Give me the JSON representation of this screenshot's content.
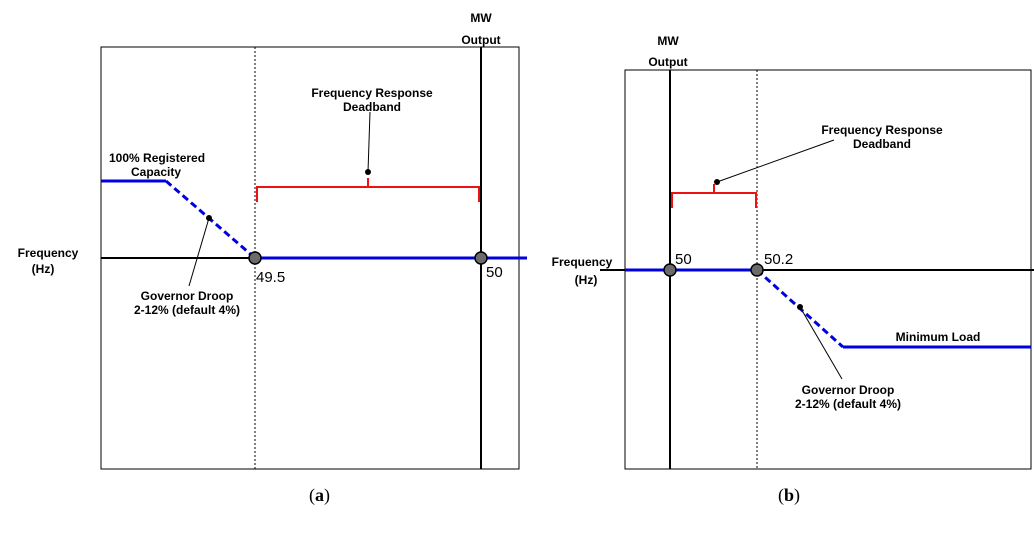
{
  "panel_a": {
    "caption_open": "(",
    "caption_letter": "a",
    "caption_close": ")",
    "mw_output": [
      "MW",
      "Output"
    ],
    "frequency_label": [
      "Frequency",
      "(Hz)"
    ],
    "deadband_label": [
      "Frequency Response",
      "Deadband"
    ],
    "capacity_label": [
      "100% Registered",
      "Capacity"
    ],
    "droop_label": [
      "Governor Droop",
      "2-12% (default 4%)"
    ],
    "point_left": "49.5",
    "point_right": "50"
  },
  "panel_b": {
    "caption_open": "(",
    "caption_letter": "b",
    "caption_close": ")",
    "mw_output": [
      "MW",
      "Output"
    ],
    "frequency_label": [
      "Frequency",
      "(Hz)"
    ],
    "deadband_label": [
      "Frequency Response",
      "Deadband"
    ],
    "min_load_label": "Minimum Load",
    "droop_label": [
      "Governor Droop",
      "2-12% (default 4%)"
    ],
    "point_left": "50",
    "point_right": "50.2"
  },
  "colors": {
    "curve": "#0000dd",
    "deadband": "#ee1111",
    "axis": "#000000",
    "marker": "#6b6b6b"
  }
}
